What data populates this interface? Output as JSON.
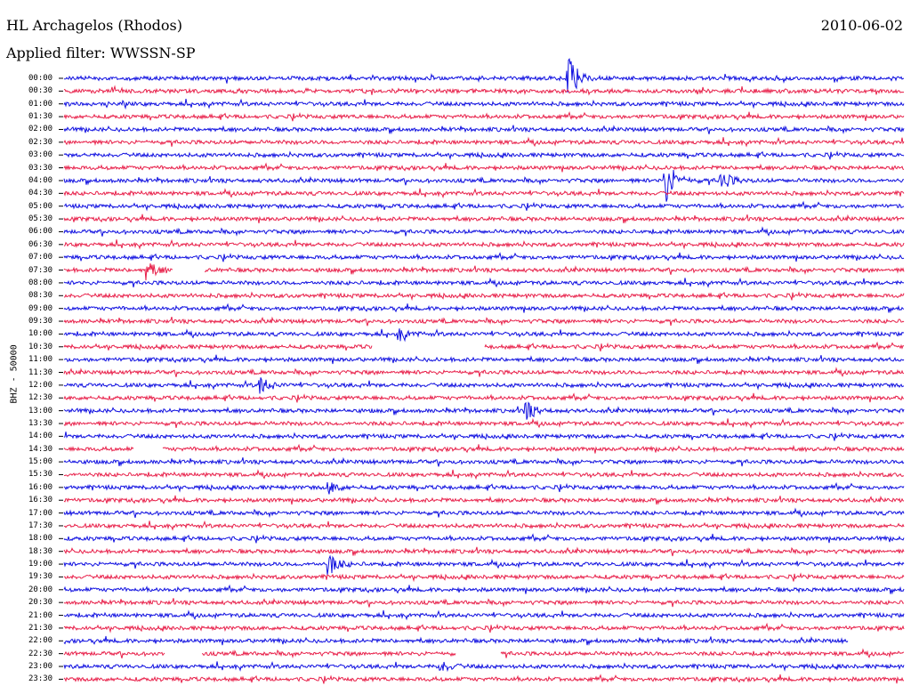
{
  "header": {
    "station": "HL Archagelos (Rhodos)",
    "date": "2010-06-02",
    "filter": "Applied filter: WWSSN-SP",
    "channel_label": "BHZ - 50000"
  },
  "colors": {
    "trace_a": "#1010e0",
    "trace_b": "#e8204a",
    "tick": "#000000"
  },
  "chart_data": {
    "type": "line",
    "title": "HL Archagelos (Rhodos)",
    "subtitle": "Applied filter: WWSSN-SP",
    "ylabel": "BHZ - 50000",
    "rows": [
      "00:00",
      "00:30",
      "01:00",
      "01:30",
      "02:00",
      "02:30",
      "03:00",
      "03:30",
      "04:00",
      "04:30",
      "05:00",
      "05:30",
      "06:00",
      "06:30",
      "07:00",
      "07:30",
      "08:00",
      "08:30",
      "09:00",
      "09:30",
      "10:00",
      "10:30",
      "11:00",
      "11:30",
      "12:00",
      "12:30",
      "13:00",
      "13:30",
      "14:00",
      "14:30",
      "15:00",
      "15:30",
      "16:00",
      "16:30",
      "17:00",
      "17:30",
      "18:00",
      "18:30",
      "19:00",
      "19:30",
      "20:00",
      "20:30",
      "21:00",
      "21:30",
      "22:00",
      "22:30",
      "23:00",
      "23:30"
    ],
    "row_minutes": 30,
    "alternating_colors": [
      "blue",
      "red"
    ],
    "events": [
      {
        "row": "00:00",
        "minute": 18.0,
        "amp": "high"
      },
      {
        "row": "04:00",
        "minute": 21.5,
        "amp": "high"
      },
      {
        "row": "04:00",
        "minute": 23.5,
        "amp": "medium"
      },
      {
        "row": "07:30",
        "minute": 3.0,
        "amp": "medium"
      },
      {
        "row": "10:00",
        "minute": 12.0,
        "amp": "low"
      },
      {
        "row": "12:00",
        "minute": 7.0,
        "amp": "medium"
      },
      {
        "row": "13:00",
        "minute": 16.5,
        "amp": "medium"
      },
      {
        "row": "16:00",
        "minute": 9.5,
        "amp": "low"
      },
      {
        "row": "19:00",
        "minute": 9.5,
        "amp": "medium"
      },
      {
        "row": "23:00",
        "minute": 13.5,
        "amp": "low"
      }
    ],
    "gaps": [
      {
        "row": "07:30",
        "from": 3.9,
        "to": 5.0
      },
      {
        "row": "10:30",
        "from": 11.0,
        "to": 15.0
      },
      {
        "row": "14:30",
        "from": 2.5,
        "to": 3.5
      },
      {
        "row": "22:00",
        "from": 28.0,
        "to": 30.0
      },
      {
        "row": "22:30",
        "from": 3.6,
        "to": 4.9
      },
      {
        "row": "22:30",
        "from": 14.0,
        "to": 15.6
      }
    ]
  }
}
